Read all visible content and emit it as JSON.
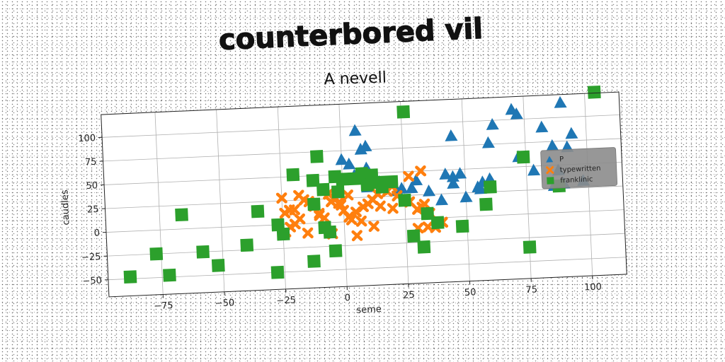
{
  "chart_data": {
    "type": "scatter",
    "title": "counterbored vil",
    "subtitle": "A nevell",
    "xlabel": "seme",
    "ylabel": "caudles",
    "xlim": [
      -97,
      114
    ],
    "ylim": [
      -68,
      124
    ],
    "xticks": [
      -75,
      -50,
      -25,
      0,
      25,
      50,
      75,
      100
    ],
    "yticks": [
      -50,
      -25,
      0,
      25,
      50,
      75,
      100
    ],
    "xtick_labels": [
      "−75",
      "−50",
      "−25",
      "0",
      "25",
      "50",
      "75",
      "100"
    ],
    "ytick_labels": [
      "−50",
      "−25",
      "0",
      "25",
      "50",
      "75",
      "100"
    ],
    "grid": true,
    "legend_position": "right",
    "legend_background": "#8c8c8c",
    "series": [
      {
        "name": "P",
        "marker": "triangle",
        "color": "#1f77b4",
        "points": [
          [
            6,
            95
          ],
          [
            8,
            75
          ],
          [
            10,
            78
          ],
          [
            0,
            65
          ],
          [
            3,
            60
          ],
          [
            5,
            48
          ],
          [
            10,
            55
          ],
          [
            12,
            45
          ],
          [
            15,
            40
          ],
          [
            20,
            38
          ],
          [
            22,
            30
          ],
          [
            24,
            32
          ],
          [
            10,
            35
          ],
          [
            45,
            85
          ],
          [
            60,
            76
          ],
          [
            62,
            95
          ],
          [
            70,
            110
          ],
          [
            72,
            105
          ],
          [
            82,
            90
          ],
          [
            90,
            115
          ],
          [
            94,
            82
          ],
          [
            86,
            70
          ],
          [
            92,
            68
          ],
          [
            72,
            60
          ],
          [
            78,
            45
          ],
          [
            88,
            44
          ],
          [
            90,
            30
          ],
          [
            98,
            32
          ],
          [
            86,
            28
          ],
          [
            42,
            45
          ],
          [
            45,
            42
          ],
          [
            48,
            45
          ],
          [
            45,
            35
          ],
          [
            55,
            30
          ],
          [
            57,
            35
          ],
          [
            60,
            38
          ],
          [
            40,
            18
          ],
          [
            35,
            28
          ],
          [
            30,
            40
          ],
          [
            28,
            32
          ],
          [
            56,
            28
          ],
          [
            50,
            20
          ]
        ]
      },
      {
        "name": "typewritten",
        "marker": "x",
        "color": "#ff7f0e",
        "points": [
          [
            -25,
            28
          ],
          [
            -24,
            12
          ],
          [
            -22,
            15
          ],
          [
            -20,
            15
          ],
          [
            -18,
            30
          ],
          [
            -16,
            25
          ],
          [
            -14,
            23
          ],
          [
            -12,
            18
          ],
          [
            -10,
            8
          ],
          [
            -8,
            5
          ],
          [
            -6,
            30
          ],
          [
            -5,
            22
          ],
          [
            -3,
            25
          ],
          [
            -2,
            20
          ],
          [
            -1,
            18
          ],
          [
            0,
            12
          ],
          [
            2,
            5
          ],
          [
            3,
            2
          ],
          [
            5,
            10
          ],
          [
            7,
            0
          ],
          [
            8,
            15
          ],
          [
            10,
            18
          ],
          [
            12,
            22
          ],
          [
            14,
            28
          ],
          [
            16,
            32
          ],
          [
            18,
            30
          ],
          [
            20,
            35
          ],
          [
            22,
            25
          ],
          [
            25,
            20
          ],
          [
            27,
            18
          ],
          [
            30,
            10
          ],
          [
            32,
            12
          ],
          [
            33,
            15
          ],
          [
            35,
            5
          ],
          [
            -20,
            0
          ],
          [
            -22,
            -3
          ],
          [
            -24,
            -8
          ],
          [
            -15,
            -10
          ],
          [
            -5,
            -12
          ],
          [
            5,
            -15
          ],
          [
            12,
            -6
          ],
          [
            30,
            -10
          ],
          [
            34,
            -9
          ],
          [
            37,
            -10
          ],
          [
            40,
            -5
          ],
          [
            -18,
            5
          ],
          [
            -10,
            10
          ],
          [
            2,
            28
          ],
          [
            15,
            15
          ],
          [
            20,
            12
          ],
          [
            27,
            45
          ],
          [
            32,
            50
          ]
        ]
      },
      {
        "name": "franklinic",
        "marker": "square",
        "color": "#2ca02c",
        "points": [
          [
            -88,
            -48
          ],
          [
            -72,
            -48
          ],
          [
            -77,
            -25
          ],
          [
            -66,
            15
          ],
          [
            -58,
            -25
          ],
          [
            -52,
            -40
          ],
          [
            -40,
            -20
          ],
          [
            -35,
            15
          ],
          [
            -28,
            -50
          ],
          [
            -27,
            0
          ],
          [
            -25,
            -10
          ],
          [
            -20,
            52
          ],
          [
            -12,
            45
          ],
          [
            -10,
            70
          ],
          [
            -12,
            20
          ],
          [
            -8,
            35
          ],
          [
            -6,
            -10
          ],
          [
            -4,
            -30
          ],
          [
            -13,
            -40
          ],
          [
            -2,
            32
          ],
          [
            0,
            45
          ],
          [
            5,
            45
          ],
          [
            8,
            50
          ],
          [
            12,
            48
          ],
          [
            15,
            40
          ],
          [
            16,
            35
          ],
          [
            25,
            20
          ],
          [
            26,
            113
          ],
          [
            28,
            -18
          ],
          [
            32,
            -30
          ],
          [
            34,
            5
          ],
          [
            38,
            -5
          ],
          [
            48,
            -10
          ],
          [
            58,
            12
          ],
          [
            60,
            30
          ],
          [
            74,
            60
          ],
          [
            75,
            -35
          ],
          [
            104,
            125
          ],
          [
            -8,
            -5
          ],
          [
            -3,
            48
          ],
          [
            10,
            38
          ],
          [
            20,
            40
          ],
          [
            88,
            28
          ]
        ]
      }
    ]
  }
}
